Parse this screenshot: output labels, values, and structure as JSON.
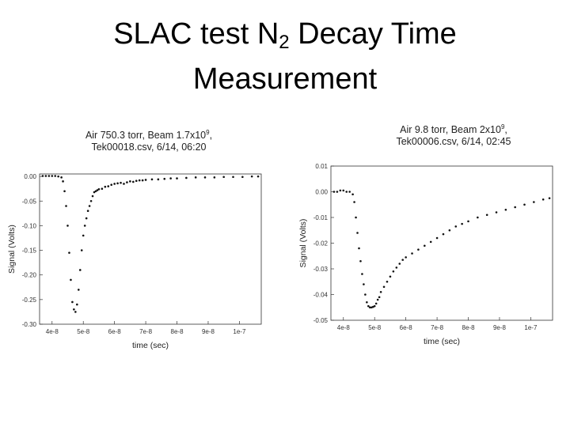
{
  "slide": {
    "title_part1": "SLAC test N",
    "title_subscript": "2",
    "title_part2": " Decay Time",
    "title_line2": "Measurement"
  },
  "chart_data": [
    {
      "type": "scatter",
      "title_line1": "Air 750.3 torr, Beam 1.7x10",
      "title_sup": "9",
      "title_line1_end": ",",
      "title_line2": "Tek00018.csv, 6/14, 06:20",
      "xlabel": "time (sec)",
      "ylabel": "Signal (Volts)",
      "xlim": [
        3.6e-08,
        1.07e-07
      ],
      "ylim": [
        -0.3,
        0.005
      ],
      "xticks": [
        4e-08,
        5e-08,
        6e-08,
        7e-08,
        8e-08,
        9e-08,
        1e-07
      ],
      "xtick_labels": [
        "4e-8",
        "5e-8",
        "6e-8",
        "7e-8",
        "8e-8",
        "9e-8",
        "1e-7"
      ],
      "yticks": [
        0.0,
        -0.05,
        -0.1,
        -0.15,
        -0.2,
        -0.25,
        -0.3
      ],
      "ytick_labels": [
        "0.00",
        "-0.05",
        "-0.10",
        "-0.15",
        "-0.20",
        "-0.25",
        "-0.30"
      ],
      "grid": false,
      "series": [
        {
          "x": [
            3.7e-08,
            3.8e-08,
            3.9e-08,
            4e-08,
            4.1e-08,
            4.2e-08,
            4.3e-08,
            4.35e-08,
            4.4e-08,
            4.45e-08,
            4.5e-08,
            4.55e-08,
            4.6e-08,
            4.65e-08,
            4.7e-08,
            4.75e-08,
            4.8e-08,
            4.85e-08,
            4.9e-08,
            4.95e-08,
            5e-08,
            5.05e-08,
            5.1e-08,
            5.15e-08,
            5.2e-08,
            5.25e-08,
            5.3e-08,
            5.35e-08,
            5.4e-08,
            5.45e-08,
            5.5e-08,
            5.6e-08,
            5.7e-08,
            5.8e-08,
            5.9e-08,
            6e-08,
            6.1e-08,
            6.2e-08,
            6.3e-08,
            6.4e-08,
            6.5e-08,
            6.6e-08,
            6.7e-08,
            6.8e-08,
            6.9e-08,
            7e-08,
            7.2e-08,
            7.4e-08,
            7.6e-08,
            7.8e-08,
            8e-08,
            8.3e-08,
            8.6e-08,
            8.9e-08,
            9.2e-08,
            9.5e-08,
            9.8e-08,
            1.01e-07,
            1.04e-07,
            1.06e-07
          ],
          "y": [
            0.001,
            0.001,
            0.001,
            0.001,
            0.001,
            0.0,
            -0.002,
            -0.01,
            -0.03,
            -0.06,
            -0.1,
            -0.155,
            -0.21,
            -0.255,
            -0.27,
            -0.275,
            -0.26,
            -0.23,
            -0.19,
            -0.15,
            -0.12,
            -0.1,
            -0.085,
            -0.07,
            -0.06,
            -0.05,
            -0.04,
            -0.032,
            -0.03,
            -0.028,
            -0.026,
            -0.025,
            -0.021,
            -0.02,
            -0.017,
            -0.015,
            -0.014,
            -0.013,
            -0.015,
            -0.012,
            -0.01,
            -0.011,
            -0.009,
            -0.008,
            -0.008,
            -0.007,
            -0.006,
            -0.006,
            -0.005,
            -0.004,
            -0.004,
            -0.003,
            -0.002,
            -0.002,
            -0.002,
            -0.001,
            -0.001,
            -0.001,
            0.0,
            0.0
          ]
        }
      ]
    },
    {
      "type": "scatter",
      "title_line1": "Air 9.8 torr, Beam 2x10",
      "title_sup": "9",
      "title_line1_end": ",",
      "title_line2": "Tek00006.csv, 6/14, 02:45",
      "xlabel": "time (sec)",
      "ylabel": "Signal (Volts)",
      "xlim": [
        3.6e-08,
        1.07e-07
      ],
      "ylim": [
        -0.05,
        0.01
      ],
      "xticks": [
        4e-08,
        5e-08,
        6e-08,
        7e-08,
        8e-08,
        9e-08,
        1e-07
      ],
      "xtick_labels": [
        "4e-8",
        "5e-8",
        "6e-8",
        "7e-8",
        "8e-8",
        "9e-8",
        "1e-7"
      ],
      "yticks": [
        0.01,
        0.0,
        -0.01,
        -0.02,
        -0.03,
        -0.04,
        -0.05
      ],
      "ytick_labels": [
        "0.01",
        "0.00",
        "-0.01",
        "-0.02",
        "-0.03",
        "-0.04",
        "-0.05"
      ],
      "grid": false,
      "series": [
        {
          "x": [
            3.7e-08,
            3.8e-08,
            3.9e-08,
            4e-08,
            4.1e-08,
            4.2e-08,
            4.3e-08,
            4.35e-08,
            4.4e-08,
            4.45e-08,
            4.5e-08,
            4.55e-08,
            4.6e-08,
            4.65e-08,
            4.7e-08,
            4.75e-08,
            4.8e-08,
            4.85e-08,
            4.9e-08,
            4.95e-08,
            5e-08,
            5.05e-08,
            5.1e-08,
            5.15e-08,
            5.2e-08,
            5.3e-08,
            5.4e-08,
            5.5e-08,
            5.6e-08,
            5.7e-08,
            5.8e-08,
            5.9e-08,
            6e-08,
            6.2e-08,
            6.4e-08,
            6.6e-08,
            6.8e-08,
            7e-08,
            7.2e-08,
            7.4e-08,
            7.6e-08,
            7.8e-08,
            8e-08,
            8.3e-08,
            8.6e-08,
            8.9e-08,
            9.2e-08,
            9.5e-08,
            9.8e-08,
            1.01e-07,
            1.04e-07,
            1.06e-07
          ],
          "y": [
            0.0,
            0.0,
            0.0005,
            0.0005,
            0.0,
            0.0,
            -0.001,
            -0.004,
            -0.01,
            -0.016,
            -0.022,
            -0.027,
            -0.032,
            -0.036,
            -0.04,
            -0.043,
            -0.0445,
            -0.045,
            -0.045,
            -0.0448,
            -0.0445,
            -0.0435,
            -0.042,
            -0.041,
            -0.039,
            -0.037,
            -0.035,
            -0.033,
            -0.031,
            -0.0295,
            -0.028,
            -0.0265,
            -0.0255,
            -0.024,
            -0.0225,
            -0.021,
            -0.0195,
            -0.018,
            -0.0165,
            -0.015,
            -0.0135,
            -0.0125,
            -0.0115,
            -0.01,
            -0.009,
            -0.008,
            -0.007,
            -0.006,
            -0.005,
            -0.004,
            -0.003,
            -0.0025
          ]
        }
      ]
    }
  ]
}
